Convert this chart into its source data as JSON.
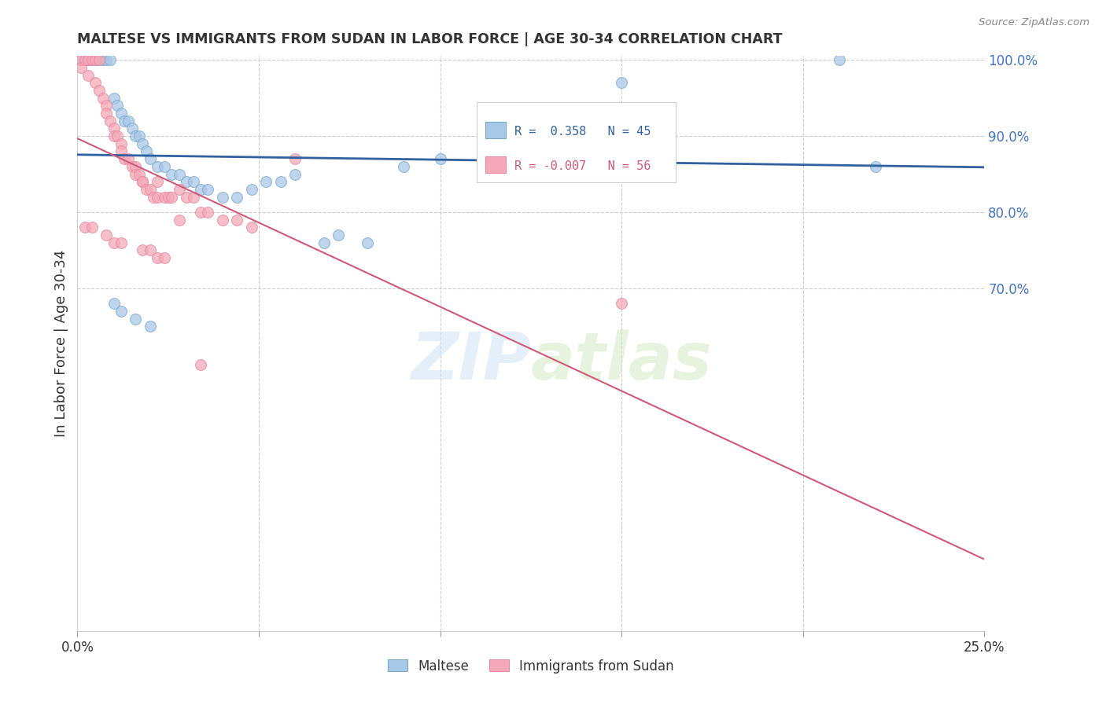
{
  "title": "MALTESE VS IMMIGRANTS FROM SUDAN IN LABOR FORCE | AGE 30-34 CORRELATION CHART",
  "source": "Source: ZipAtlas.com",
  "ylabel": "In Labor Force | Age 30-34",
  "xlim": [
    0.0,
    0.25
  ],
  "ylim": [
    0.25,
    1.005
  ],
  "blue_R": 0.358,
  "blue_N": 45,
  "pink_R": -0.007,
  "pink_N": 56,
  "blue_color": "#a8c8e8",
  "pink_color": "#f4a8b8",
  "blue_edge_color": "#7aaac8",
  "pink_edge_color": "#e888a0",
  "blue_line_color": "#3060a0",
  "pink_line_color": "#d05878",
  "ytick_vals": [
    0.7,
    0.8,
    0.9,
    1.0
  ],
  "ytick_labels": [
    "70.0%",
    "80.0%",
    "90.0%",
    "100.0%"
  ],
  "xtick_vals": [
    0.0,
    0.05,
    0.1,
    0.15,
    0.2,
    0.25
  ],
  "xtick_labels": [
    "0.0%",
    "",
    "",
    "",
    "",
    "25.0%"
  ],
  "blue_x": [
    0.001,
    0.003,
    0.004,
    0.005,
    0.006,
    0.007,
    0.008,
    0.009,
    0.01,
    0.011,
    0.012,
    0.013,
    0.014,
    0.015,
    0.016,
    0.017,
    0.018,
    0.019,
    0.02,
    0.022,
    0.024,
    0.026,
    0.028,
    0.03,
    0.032,
    0.034,
    0.036,
    0.04,
    0.044,
    0.048,
    0.052,
    0.056,
    0.06,
    0.068,
    0.072,
    0.08,
    0.09,
    0.1,
    0.15,
    0.21,
    0.22,
    0.01,
    0.012,
    0.016,
    0.02
  ],
  "blue_y": [
    1.0,
    1.0,
    1.0,
    1.0,
    1.0,
    1.0,
    1.0,
    1.0,
    0.95,
    0.94,
    0.93,
    0.92,
    0.92,
    0.91,
    0.9,
    0.9,
    0.89,
    0.88,
    0.87,
    0.86,
    0.86,
    0.85,
    0.85,
    0.84,
    0.84,
    0.83,
    0.83,
    0.82,
    0.82,
    0.83,
    0.84,
    0.84,
    0.85,
    0.76,
    0.77,
    0.76,
    0.86,
    0.87,
    0.97,
    1.0,
    0.86,
    0.68,
    0.67,
    0.66,
    0.65
  ],
  "pink_x": [
    0.001,
    0.001,
    0.002,
    0.003,
    0.003,
    0.004,
    0.005,
    0.005,
    0.006,
    0.006,
    0.007,
    0.008,
    0.008,
    0.009,
    0.01,
    0.01,
    0.011,
    0.012,
    0.012,
    0.013,
    0.014,
    0.015,
    0.016,
    0.016,
    0.017,
    0.018,
    0.018,
    0.019,
    0.02,
    0.021,
    0.022,
    0.022,
    0.024,
    0.025,
    0.026,
    0.028,
    0.03,
    0.032,
    0.034,
    0.036,
    0.04,
    0.044,
    0.048,
    0.06,
    0.15,
    0.002,
    0.004,
    0.008,
    0.01,
    0.012,
    0.018,
    0.02,
    0.022,
    0.024,
    0.028,
    0.034
  ],
  "pink_y": [
    1.0,
    0.99,
    1.0,
    1.0,
    0.98,
    1.0,
    1.0,
    0.97,
    1.0,
    0.96,
    0.95,
    0.94,
    0.93,
    0.92,
    0.91,
    0.9,
    0.9,
    0.89,
    0.88,
    0.87,
    0.87,
    0.86,
    0.86,
    0.85,
    0.85,
    0.84,
    0.84,
    0.83,
    0.83,
    0.82,
    0.84,
    0.82,
    0.82,
    0.82,
    0.82,
    0.83,
    0.82,
    0.82,
    0.8,
    0.8,
    0.79,
    0.79,
    0.78,
    0.87,
    0.68,
    0.78,
    0.78,
    0.77,
    0.76,
    0.76,
    0.75,
    0.75,
    0.74,
    0.74,
    0.79,
    0.6
  ]
}
